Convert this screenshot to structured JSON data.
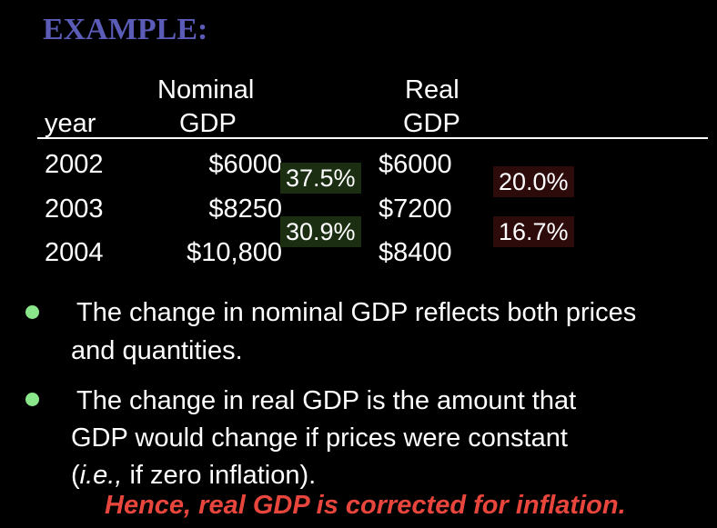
{
  "slide": {
    "title": "EXAMPLE:"
  },
  "table": {
    "headers": {
      "year": "year",
      "nominal_top": "Nominal",
      "nominal_bottom": "GDP",
      "real_top": "Real",
      "real_bottom": "GDP"
    },
    "rows": [
      {
        "year": "2002",
        "nominal": "$6000",
        "real": "$6000"
      },
      {
        "year": "2003",
        "nominal": "$8250",
        "real": "$7200"
      },
      {
        "year": "2004",
        "nominal": "$10,800",
        "real": "$8400"
      }
    ],
    "nominal_changes": [
      "37.5%",
      "30.9%"
    ],
    "real_changes": [
      "20.0%",
      "16.7%"
    ]
  },
  "bullets": [
    {
      "lines": [
        "The change in nominal GDP reflects both prices",
        "and quantities."
      ]
    },
    {
      "lines": [
        "The change in real GDP is the amount that",
        "GDP would change if prices were constant"
      ],
      "ie_prefix": "(",
      "ie_italic": "i.e.,",
      "ie_rest": " if zero inflation)."
    }
  ],
  "conclusion": "Hence, real GDP is corrected for inflation.",
  "colors": {
    "title": "#5b5bb8",
    "bullet": "#8ae68a",
    "conclusion": "#e8463c",
    "nominal_badge_bg": "#1c2e12",
    "real_badge_bg": "#2e0b0b"
  }
}
